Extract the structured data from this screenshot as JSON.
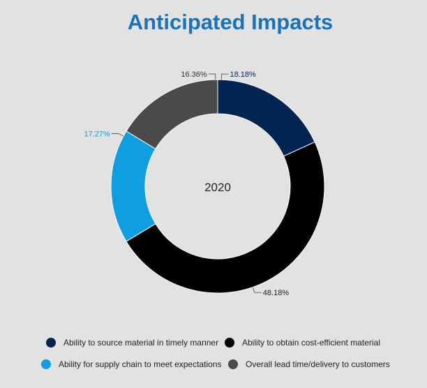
{
  "chart_data": {
    "type": "pie",
    "variant": "donut",
    "title": "Anticipated Impacts",
    "center_label": "2020",
    "categories": [
      "Ability to source material in timely manner",
      "Ability to obtain cost-efficient material",
      "Ability for supply chain to meet expectations",
      "Overall lead time/delivery to customers"
    ],
    "values": [
      18.18,
      48.18,
      17.27,
      16.36
    ],
    "value_labels": [
      "18.18%",
      "48.18%",
      "17.27%",
      "16.36%"
    ],
    "colors": [
      "#002552",
      "#000000",
      "#0f9ee0",
      "#4a4a4a"
    ],
    "label_colors": [
      "#002552",
      "#222222",
      "#0f9ee0",
      "#333333"
    ],
    "legend": "bottom"
  }
}
